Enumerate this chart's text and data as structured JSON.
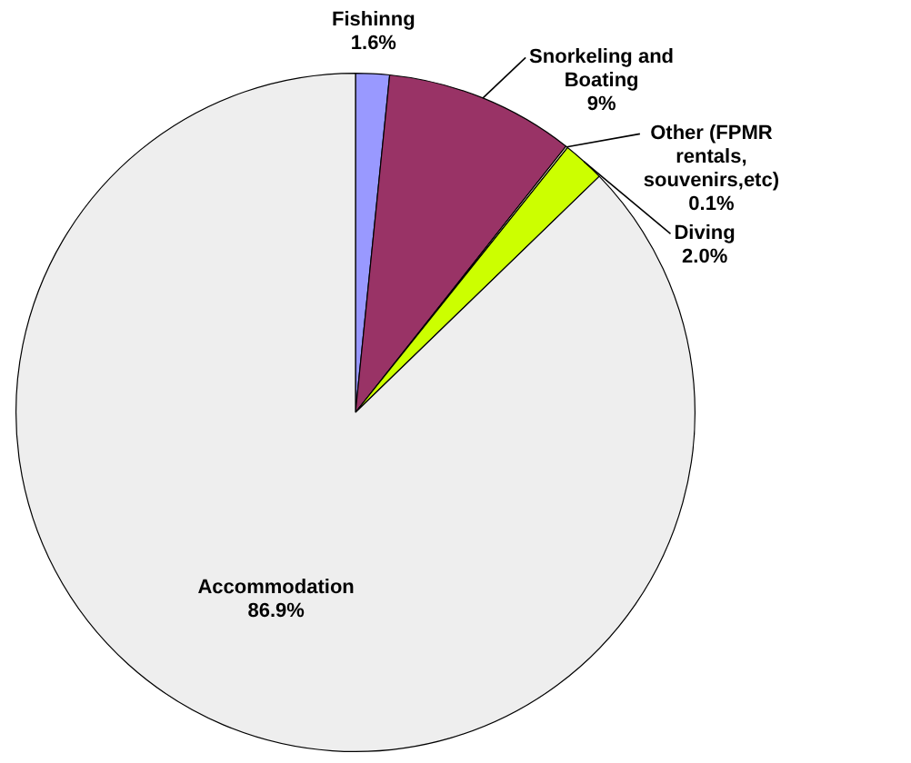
{
  "chart_data": {
    "type": "pie",
    "categories": [
      "Fishinng",
      "Snorkeling and Boating",
      "Other (FPMR rentals, souvenirs,etc)",
      "Diving",
      "Accommodation"
    ],
    "values": [
      1.6,
      9,
      0.1,
      2.0,
      86.9
    ],
    "value_labels": [
      "1.6%",
      "9%",
      "0.1%",
      "2.0%",
      "86.9%"
    ],
    "colors": [
      "#9999ff",
      "#993366",
      "#ffffcc",
      "#ccff00",
      "#eeeeee"
    ],
    "legend": false
  }
}
